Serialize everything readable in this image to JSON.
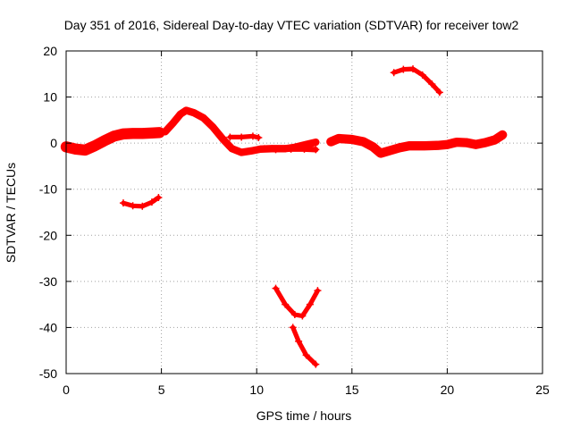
{
  "chart_data": {
    "type": "scatter",
    "title": "Day 351 of 2016, Sidereal Day-to-day VTEC variation (SDTVAR) for receiver tow2",
    "xlabel": "GPS time / hours",
    "ylabel": "SDTVAR / TECUs",
    "xlim": [
      0,
      25
    ],
    "ylim": [
      -50,
      20
    ],
    "xticks": [
      0,
      5,
      10,
      15,
      20,
      25
    ],
    "yticks": [
      -50,
      -40,
      -30,
      -20,
      -10,
      0,
      10,
      20
    ],
    "grid": true,
    "color": "#ff0000",
    "series": [
      {
        "name": "arc-main-1",
        "thickness": 2.4,
        "points": [
          [
            0,
            -0.8
          ],
          [
            0.5,
            -1.3
          ],
          [
            1,
            -1.5
          ],
          [
            1.5,
            -0.6
          ],
          [
            2,
            0.5
          ],
          [
            2.5,
            1.5
          ],
          [
            3,
            2
          ],
          [
            3.5,
            2.1
          ],
          [
            4,
            2.1
          ],
          [
            4.5,
            2.2
          ],
          [
            4.9,
            2.3
          ]
        ]
      },
      {
        "name": "arc-main-2",
        "thickness": 1.6,
        "points": [
          [
            5.2,
            2.5
          ],
          [
            5.6,
            4.3
          ],
          [
            6,
            6.3
          ],
          [
            6.3,
            7.1
          ],
          [
            6.7,
            6.6
          ],
          [
            7.2,
            5.5
          ],
          [
            7.7,
            3.5
          ],
          [
            8.2,
            1
          ],
          [
            8.7,
            -1.2
          ],
          [
            9.2,
            -2
          ],
          [
            9.7,
            -1.7
          ],
          [
            10.2,
            -1.3
          ],
          [
            10.8,
            -1.2
          ],
          [
            11.5,
            -1.2
          ],
          [
            12,
            -0.9
          ],
          [
            12.6,
            -0.3
          ],
          [
            13.1,
            0.2
          ]
        ]
      },
      {
        "name": "arc-main-3",
        "thickness": 1.2,
        "points": [
          [
            10.4,
            -1.2
          ],
          [
            11,
            -1.4
          ],
          [
            11.8,
            -1.3
          ],
          [
            12.5,
            -1.3
          ],
          [
            13.1,
            -1.4
          ]
        ]
      },
      {
        "name": "arc-short-9",
        "thickness": 1.0,
        "points": [
          [
            8.6,
            1.3
          ],
          [
            9.2,
            1.3
          ],
          [
            9.8,
            1.5
          ],
          [
            10.1,
            1.2
          ]
        ]
      },
      {
        "name": "arc-main-4",
        "thickness": 2.0,
        "points": [
          [
            13.9,
            0.3
          ],
          [
            14.3,
            1
          ],
          [
            15,
            0.8
          ],
          [
            15.6,
            0.3
          ],
          [
            16.1,
            -0.8
          ],
          [
            16.5,
            -2.2
          ],
          [
            17,
            -1.6
          ],
          [
            17.5,
            -1
          ],
          [
            18,
            -0.6
          ],
          [
            18.8,
            -0.6
          ],
          [
            19.5,
            -0.5
          ],
          [
            20,
            -0.3
          ],
          [
            20.5,
            0.2
          ],
          [
            21,
            0.1
          ],
          [
            21.5,
            -0.3
          ],
          [
            22,
            0.1
          ],
          [
            22.5,
            0.7
          ],
          [
            22.9,
            1.8
          ]
        ]
      },
      {
        "name": "arc-low-4",
        "thickness": 1.0,
        "points": [
          [
            3,
            -13
          ],
          [
            3.5,
            -13.6
          ],
          [
            4,
            -13.7
          ],
          [
            4.5,
            -12.8
          ],
          [
            4.85,
            -11.8
          ]
        ]
      },
      {
        "name": "arc-high-18",
        "thickness": 1.0,
        "points": [
          [
            17.2,
            15.3
          ],
          [
            17.7,
            16
          ],
          [
            18.2,
            16.1
          ],
          [
            18.7,
            14.8
          ],
          [
            19.2,
            12.8
          ],
          [
            19.6,
            11
          ]
        ]
      },
      {
        "name": "arc-deep-1",
        "thickness": 1.0,
        "points": [
          [
            11,
            -31.5
          ],
          [
            11.5,
            -35
          ],
          [
            12,
            -37.2
          ],
          [
            12.4,
            -37.5
          ],
          [
            12.8,
            -35
          ],
          [
            13.2,
            -32
          ]
        ]
      },
      {
        "name": "arc-deep-2",
        "thickness": 1.0,
        "points": [
          [
            11.9,
            -40
          ],
          [
            12.2,
            -43
          ],
          [
            12.6,
            -46
          ],
          [
            13.1,
            -48
          ]
        ]
      }
    ]
  }
}
